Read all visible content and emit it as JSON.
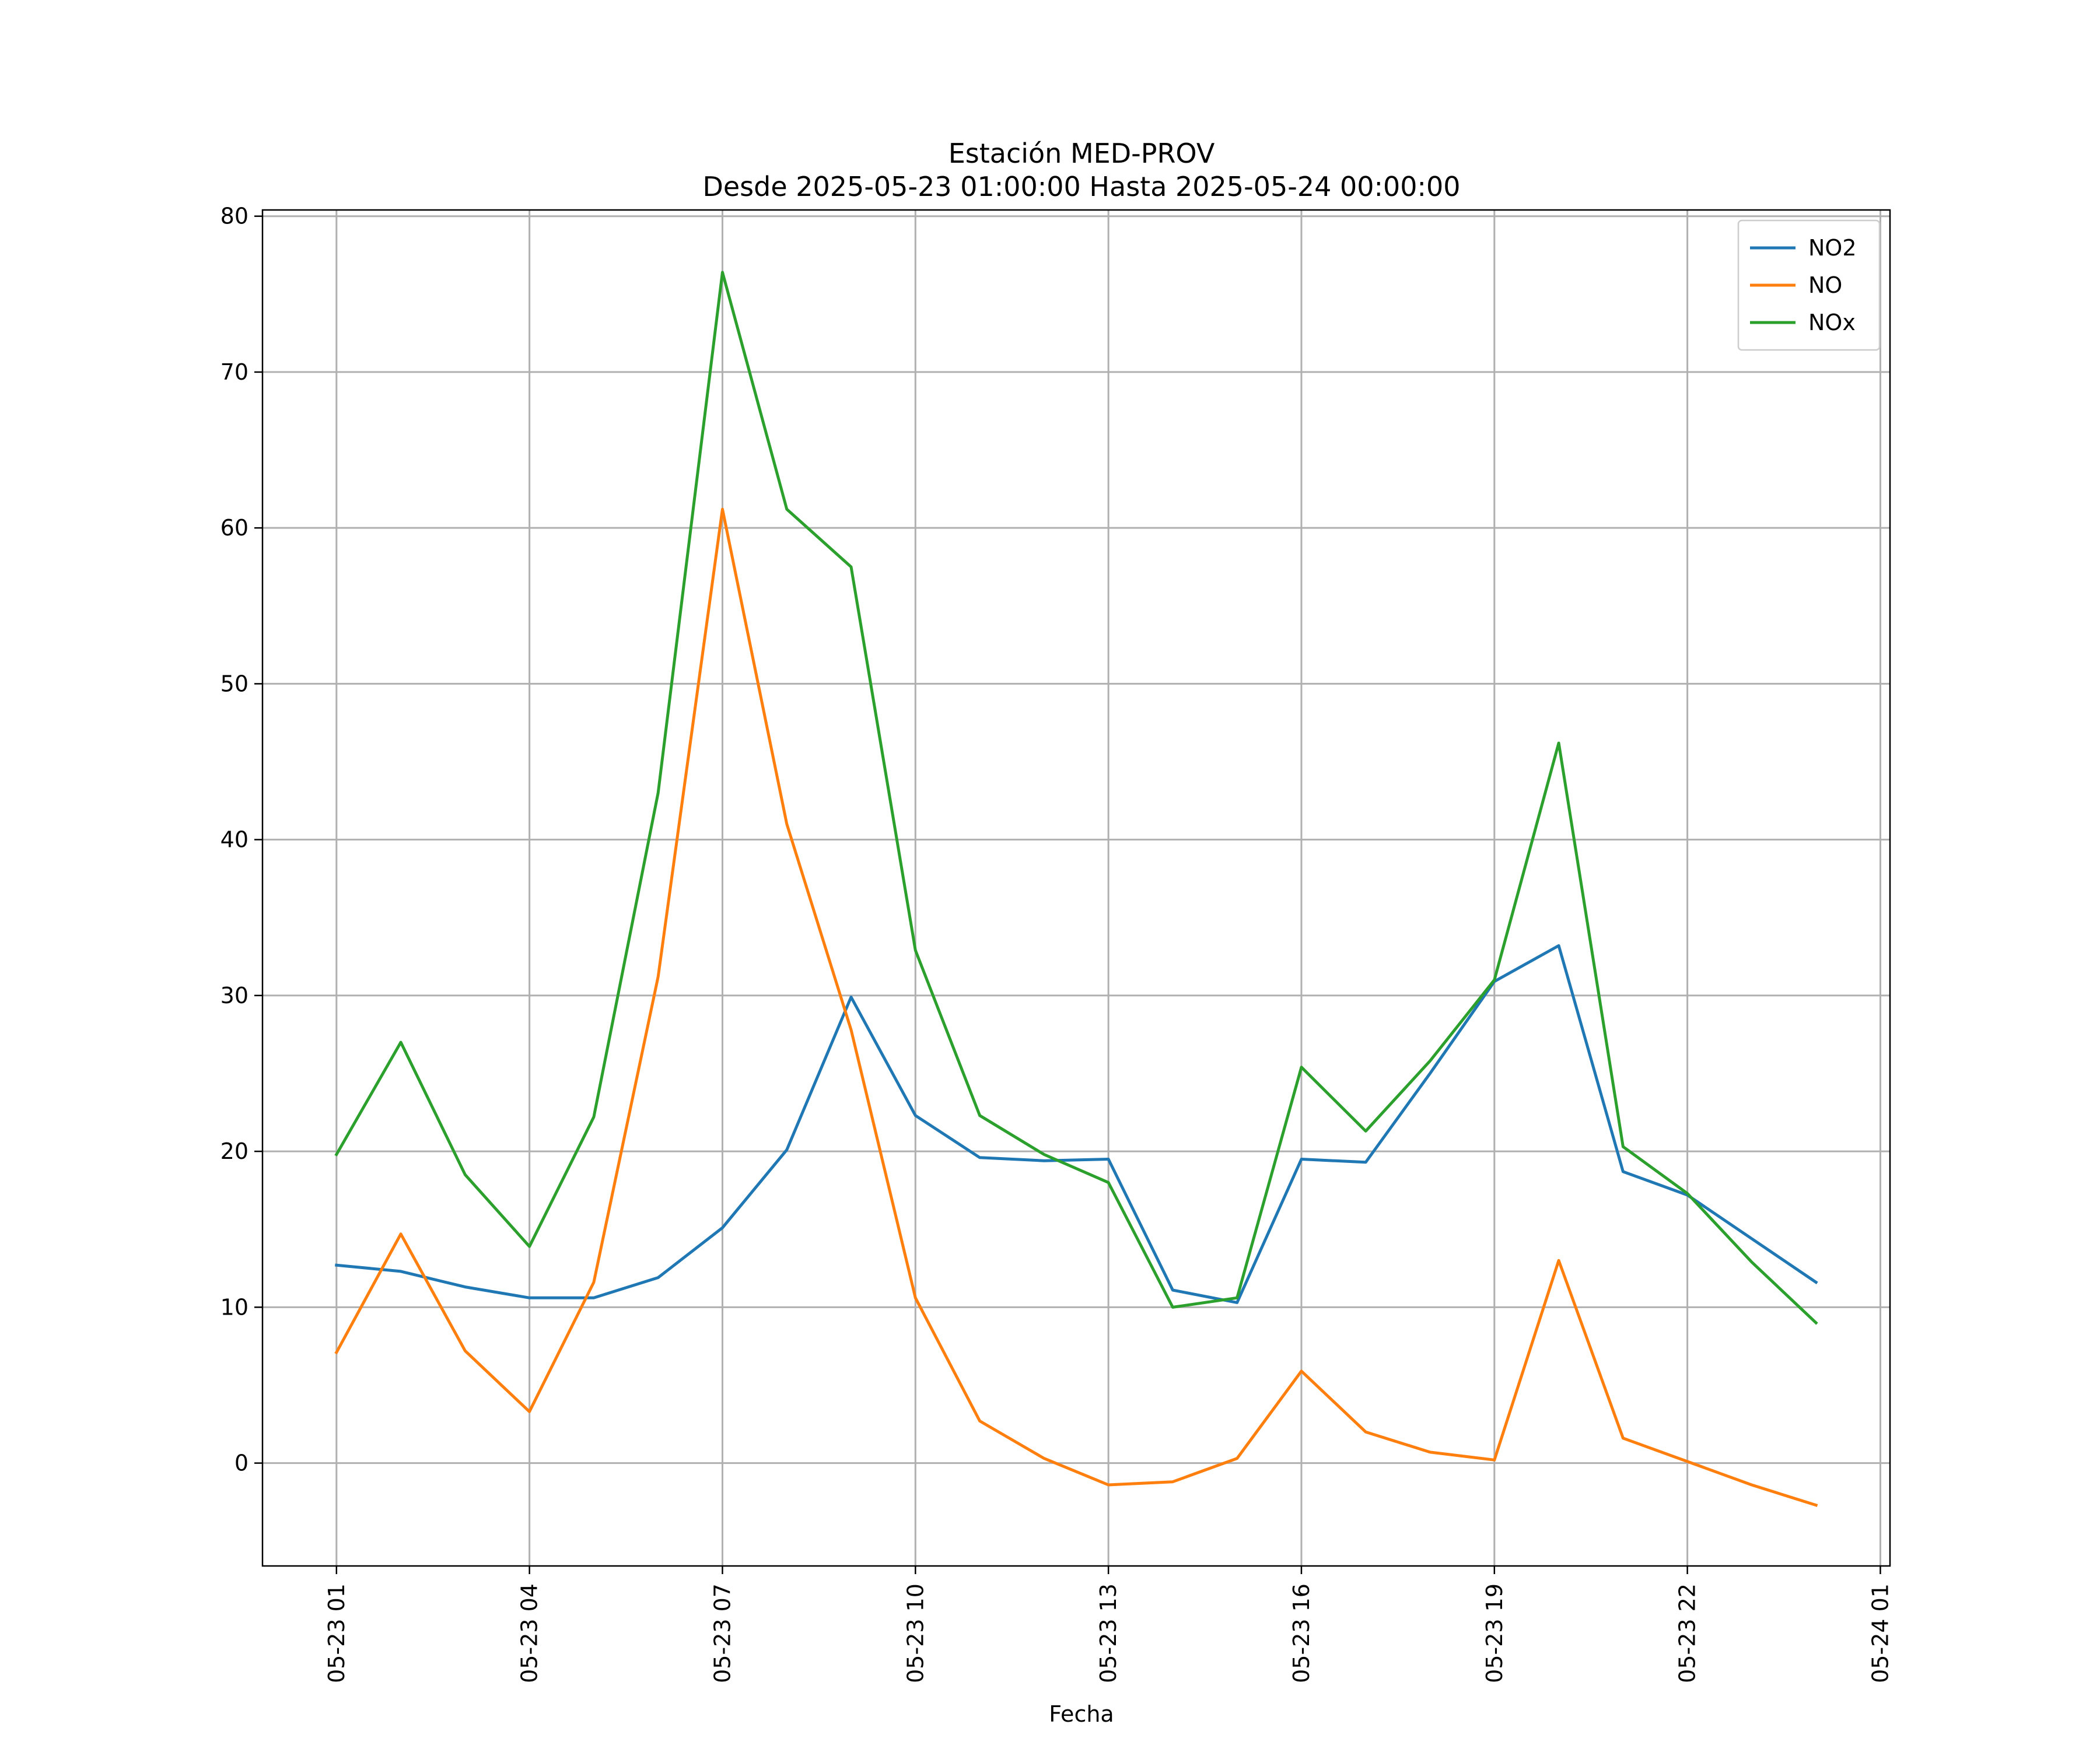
{
  "chart_data": {
    "type": "line",
    "title": "Estación MED-PROV",
    "subtitle": "Desde 2025-05-23 01:00:00 Hasta 2025-05-24 00:00:00",
    "xlabel": "Fecha",
    "ylabel": "",
    "grid": true,
    "legend_position": "top-right",
    "xlim": [
      "2025-05-22 23:51",
      "2025-05-24 01:09"
    ],
    "ylim": [
      -6.6,
      80.4
    ],
    "x_ticks": [
      {
        "value": "2025-05-23 01:00",
        "label": "05-23 01"
      },
      {
        "value": "2025-05-23 04:00",
        "label": "05-23 04"
      },
      {
        "value": "2025-05-23 07:00",
        "label": "05-23 07"
      },
      {
        "value": "2025-05-23 10:00",
        "label": "05-23 10"
      },
      {
        "value": "2025-05-23 13:00",
        "label": "05-23 13"
      },
      {
        "value": "2025-05-23 16:00",
        "label": "05-23 16"
      },
      {
        "value": "2025-05-23 19:00",
        "label": "05-23 19"
      },
      {
        "value": "2025-05-23 22:00",
        "label": "05-23 22"
      },
      {
        "value": "2025-05-24 01:00",
        "label": "05-24 01"
      }
    ],
    "y_ticks": [
      0,
      10,
      20,
      30,
      40,
      50,
      60,
      70,
      80
    ],
    "x": [
      "2025-05-23 01:00",
      "2025-05-23 02:00",
      "2025-05-23 03:00",
      "2025-05-23 04:00",
      "2025-05-23 05:00",
      "2025-05-23 06:00",
      "2025-05-23 07:00",
      "2025-05-23 08:00",
      "2025-05-23 09:00",
      "2025-05-23 10:00",
      "2025-05-23 11:00",
      "2025-05-23 12:00",
      "2025-05-23 13:00",
      "2025-05-23 14:00",
      "2025-05-23 15:00",
      "2025-05-23 16:00",
      "2025-05-23 17:00",
      "2025-05-23 18:00",
      "2025-05-23 19:00",
      "2025-05-23 20:00",
      "2025-05-23 21:00",
      "2025-05-23 22:00",
      "2025-05-23 23:00",
      "2025-05-24 00:00"
    ],
    "series": [
      {
        "name": "NO2",
        "color": "#1f77b4",
        "values": [
          12.7,
          12.3,
          11.3,
          10.6,
          10.6,
          11.9,
          15.1,
          20.1,
          29.9,
          22.3,
          19.6,
          19.4,
          19.5,
          11.1,
          10.3,
          19.5,
          19.3,
          25.0,
          30.9,
          33.2,
          18.7,
          17.2,
          14.4,
          11.6
        ]
      },
      {
        "name": "NO",
        "color": "#ff7f0e",
        "values": [
          7.1,
          14.7,
          7.2,
          3.3,
          11.6,
          31.2,
          61.2,
          41.0,
          27.8,
          10.6,
          2.7,
          0.3,
          -1.4,
          -1.2,
          0.3,
          5.9,
          2.0,
          0.7,
          0.2,
          13.0,
          1.6,
          0.1,
          -1.4,
          -2.7
        ]
      },
      {
        "name": "NOx",
        "color": "#2ca02c",
        "values": [
          19.8,
          27.0,
          18.5,
          13.9,
          22.2,
          43.0,
          76.4,
          61.2,
          57.5,
          32.9,
          22.3,
          19.8,
          18.0,
          10.0,
          10.6,
          25.4,
          21.3,
          25.8,
          31.0,
          46.2,
          20.3,
          17.3,
          12.9,
          9.0
        ]
      }
    ]
  }
}
